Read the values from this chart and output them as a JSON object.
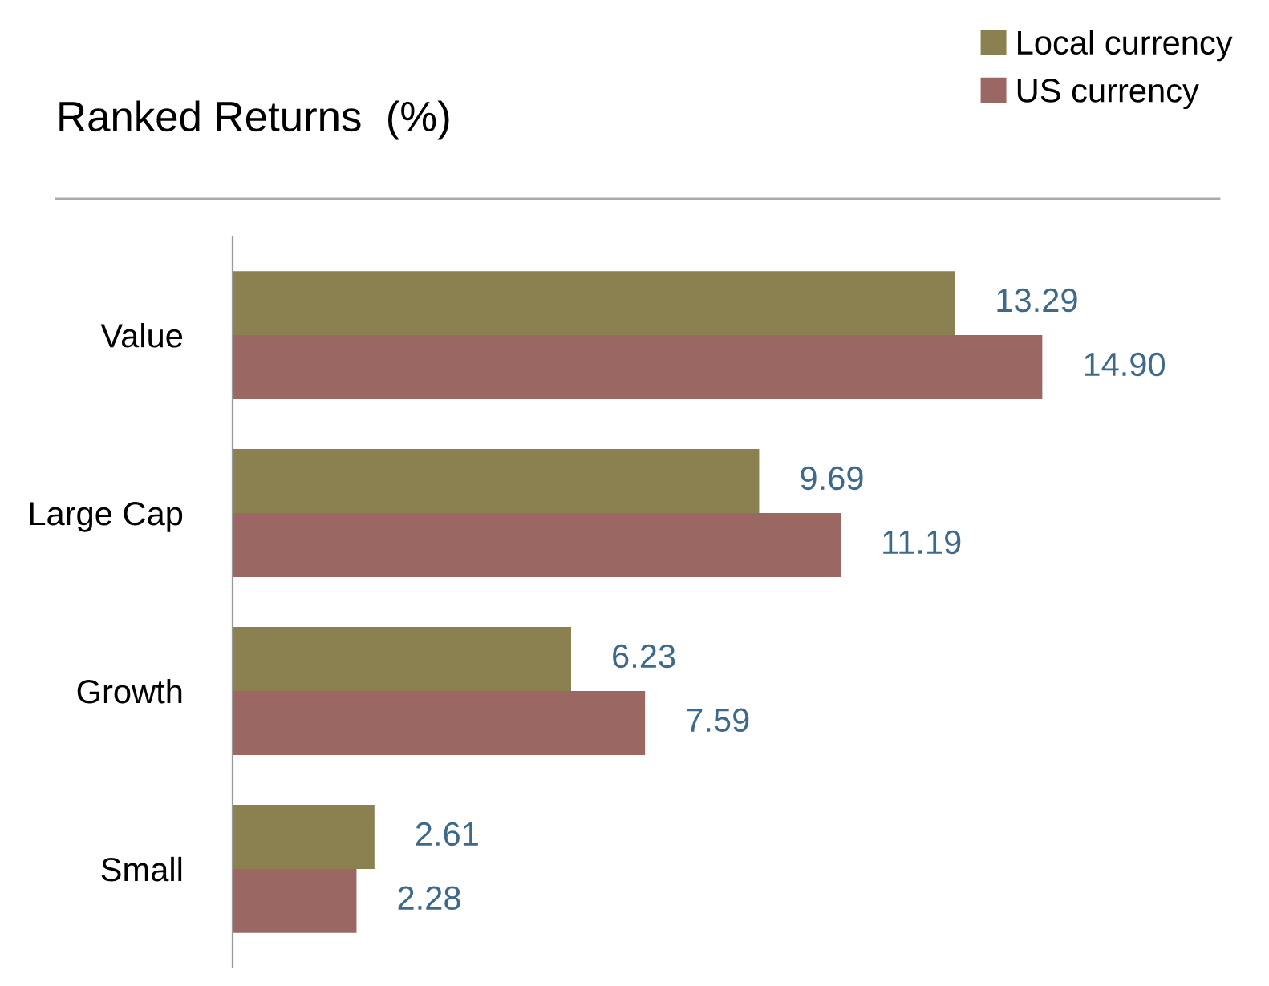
{
  "chart_data": {
    "type": "bar",
    "orientation": "horizontal",
    "title": "Ranked Returns  (%)",
    "categories": [
      "Value",
      "Large Cap",
      "Growth",
      "Small"
    ],
    "series": [
      {
        "name": "Local currency",
        "color": "#8b8050",
        "values": [
          13.29,
          9.69,
          6.23,
          2.61
        ],
        "value_labels": [
          "13.29",
          "9.69",
          "6.23",
          "2.61"
        ]
      },
      {
        "name": "US currency",
        "color": "#9b6763",
        "values": [
          14.9,
          11.19,
          7.59,
          2.28
        ],
        "value_labels": [
          "14.90",
          "11.19",
          "7.59",
          "2.28"
        ]
      }
    ],
    "legend": "top right",
    "grid": false
  }
}
